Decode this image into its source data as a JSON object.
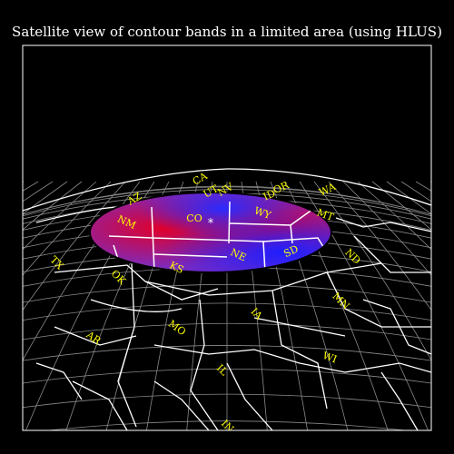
{
  "title": "Satellite view of contour bands in a limited area (using HLUS)",
  "colors": {
    "background": "#000000",
    "map_lines": "#ffffff",
    "labels": "#ffff00",
    "band_red": "#e0002a",
    "band_purple": "#7b2bbf",
    "band_blue": "#1e1eff"
  },
  "state_labels": [
    "CA",
    "NV",
    "ID",
    "OR",
    "WA",
    "AZ",
    "NM",
    "CO",
    "UT",
    "WY",
    "MT",
    "NE",
    "SD",
    "ND",
    "KS",
    "OK",
    "TX",
    "MN",
    "IA",
    "MO",
    "AR",
    "WI",
    "IL",
    "IN"
  ],
  "markers": [
    {
      "symbol": "*",
      "name": "center-star"
    }
  ]
}
